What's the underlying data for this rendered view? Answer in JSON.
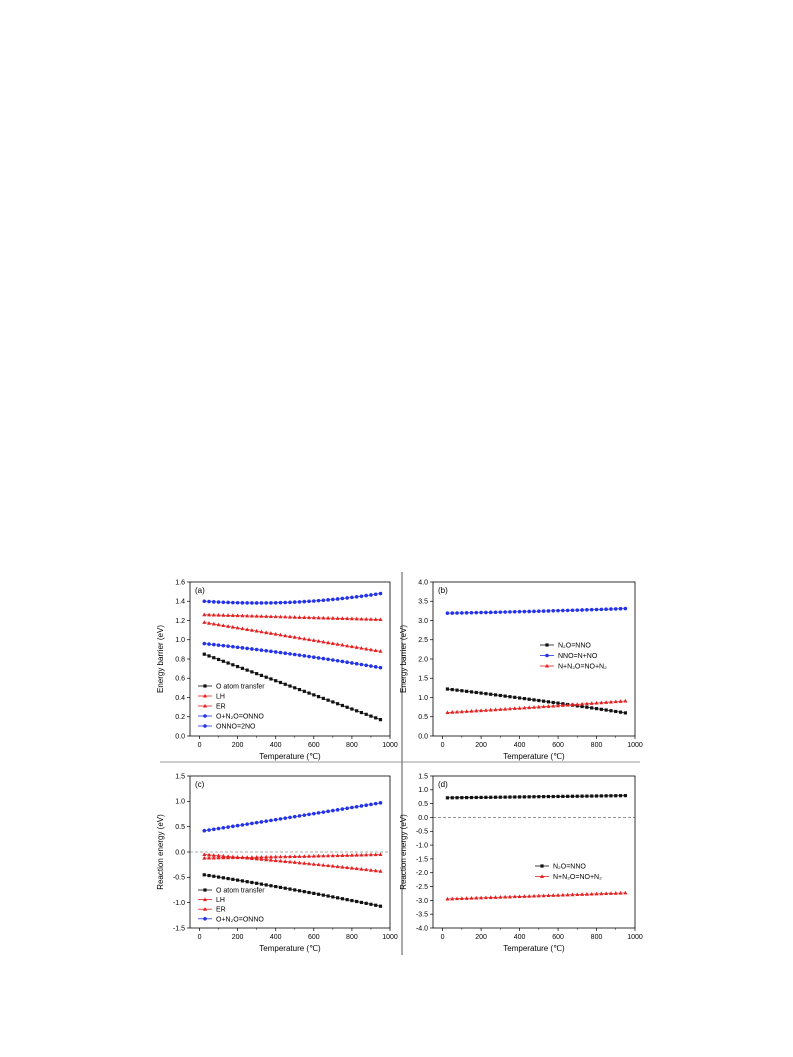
{
  "colors": {
    "black": "#111111",
    "red": "#e52020",
    "blue": "#2433e6",
    "axis": "#000000",
    "divider": "#555555"
  },
  "chart_data": [
    {
      "type": "line",
      "panel_label": "(a)",
      "xlabel": "Temperature (℃)",
      "ylabel": "Energy barrier (eV)",
      "xlim": [
        -50,
        1000
      ],
      "ylim": [
        0.0,
        1.6
      ],
      "xticks": [
        0,
        200,
        400,
        600,
        800,
        1000
      ],
      "yticks": [
        0.0,
        0.2,
        0.4,
        0.6,
        0.8,
        1.0,
        1.2,
        1.4,
        1.6
      ],
      "ytick_labels": [
        "0.0",
        "0.2",
        "0.4",
        "0.6",
        "0.8",
        "1.0",
        "1.2",
        "1.4",
        "1.6"
      ],
      "legend_position": "bottom-left",
      "x_start": 25,
      "x_end": 950,
      "n_points": 38,
      "series": [
        {
          "name": "O atom transfer",
          "color": "#111111",
          "marker": "square",
          "y_start": 0.85,
          "y_end": 0.17,
          "y_mid": 0.51
        },
        {
          "name": "LH",
          "color": "#e52020",
          "marker": "triangle",
          "y_start": 1.26,
          "y_end": 1.21,
          "y_mid": 1.235
        },
        {
          "name": "ER",
          "color": "#e52020",
          "marker": "triangle",
          "y_start": 1.18,
          "y_end": 0.88,
          "y_mid": 1.03
        },
        {
          "name": "O+N₂O=ONNO",
          "color": "#2433e6",
          "marker": "circle",
          "y_start": 0.96,
          "y_end": 0.71,
          "y_mid": 0.85
        },
        {
          "name": "ONNO=2NO",
          "color": "#2433e6",
          "marker": "circle",
          "y_start": 1.4,
          "y_end": 1.48,
          "y_mid": 1.39
        }
      ]
    },
    {
      "type": "line",
      "panel_label": "(b)",
      "xlabel": "Temperature (℃)",
      "ylabel": "Energy barrier (eV)",
      "xlim": [
        -50,
        1000
      ],
      "ylim": [
        0.0,
        4.0
      ],
      "xticks": [
        0,
        200,
        400,
        600,
        800,
        1000
      ],
      "yticks": [
        0.0,
        0.5,
        1.0,
        1.5,
        2.0,
        2.5,
        3.0,
        3.5,
        4.0
      ],
      "ytick_labels": [
        "0.0",
        "0.5",
        "1.0",
        "1.5",
        "2.0",
        "2.5",
        "3.0",
        "3.5",
        "4.0"
      ],
      "legend_position": "center-right",
      "x_start": 25,
      "x_end": 950,
      "n_points": 38,
      "series": [
        {
          "name": "N₂O=NNO",
          "color": "#111111",
          "marker": "square",
          "y_start": 1.22,
          "y_end": 0.6,
          "y_mid": 0.93
        },
        {
          "name": "NNO=N+NO",
          "color": "#2433e6",
          "marker": "circle",
          "y_start": 3.19,
          "y_end": 3.31,
          "y_mid": 3.24
        },
        {
          "name": "N+N₂O=NO+N₂",
          "color": "#e52020",
          "marker": "triangle",
          "y_start": 0.61,
          "y_end": 0.91,
          "y_mid": 0.75
        }
      ]
    },
    {
      "type": "line",
      "panel_label": "(c)",
      "xlabel": "Temperature (℃)",
      "ylabel": "Reaction energy (eV)",
      "xlim": [
        -50,
        1000
      ],
      "ylim": [
        -1.5,
        1.5
      ],
      "xticks": [
        0,
        200,
        400,
        600,
        800,
        1000
      ],
      "yticks": [
        -1.5,
        -1.0,
        -0.5,
        0.0,
        0.5,
        1.0,
        1.5
      ],
      "ytick_labels": [
        "-1.5",
        "-1.0",
        "-0.5",
        "0.0",
        "0.5",
        "1.0",
        "1.5"
      ],
      "zero_line": true,
      "legend_position": "bottom-left",
      "x_start": 25,
      "x_end": 950,
      "n_points": 38,
      "series": [
        {
          "name": "O atom transfer",
          "color": "#111111",
          "marker": "square",
          "y_start": -0.45,
          "y_end": -1.07,
          "y_mid": -0.74
        },
        {
          "name": "LH",
          "color": "#e52020",
          "marker": "triangle",
          "y_start": -0.05,
          "y_end": -0.38,
          "y_mid": -0.2
        },
        {
          "name": "ER",
          "color": "#e52020",
          "marker": "triangle",
          "y_start": -0.12,
          "y_end": -0.05,
          "y_mid": -0.09
        },
        {
          "name": "O+N₂O=ONNO",
          "color": "#2433e6",
          "marker": "circle",
          "y_start": 0.42,
          "y_end": 0.97,
          "y_mid": 0.69
        }
      ]
    },
    {
      "type": "line",
      "panel_label": "(d)",
      "xlabel": "Temperature (℃)",
      "ylabel": "Reaction energy (eV)",
      "xlim": [
        -50,
        1000
      ],
      "ylim": [
        -4.0,
        1.5
      ],
      "xticks": [
        0,
        200,
        400,
        600,
        800,
        1000
      ],
      "yticks": [
        -4.0,
        -3.5,
        -3.0,
        -2.5,
        -2.0,
        -1.5,
        -1.0,
        -0.5,
        0.0,
        0.5,
        1.0,
        1.5
      ],
      "ytick_labels": [
        "-4.0",
        "-3.5",
        "-3.0",
        "-2.5",
        "-2.0",
        "-1.5",
        "-1.0",
        "-0.5",
        "0.0",
        "0.5",
        "1.0",
        "1.5"
      ],
      "zero_line": true,
      "legend_position": "center-right",
      "x_start": 25,
      "x_end": 950,
      "n_points": 38,
      "series": [
        {
          "name": "N₂O=NNO",
          "color": "#111111",
          "marker": "square",
          "y_start": 0.71,
          "y_end": 0.79,
          "y_mid": 0.75
        },
        {
          "name": "N+N₂O=NO+N₂",
          "color": "#e52020",
          "marker": "triangle",
          "y_start": -2.95,
          "y_end": -2.73,
          "y_mid": -2.84
        }
      ]
    }
  ]
}
